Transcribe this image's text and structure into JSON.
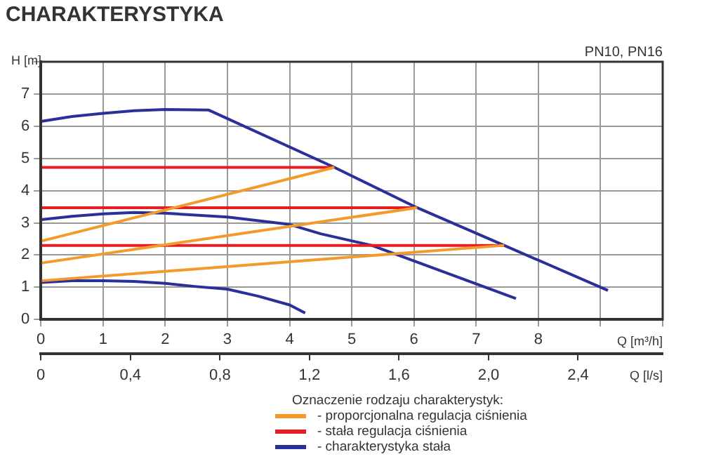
{
  "chart_data": {
    "type": "line",
    "title": "CHARAKTERYSTYKA",
    "subtitle": "PN10, PN16",
    "xlabel": "Q [m³/h]",
    "ylabel": "H [m]",
    "x2label": "Q [l/s]",
    "legend_title": "Oznaczenie rodzaju charakterystyk:",
    "legend": "bottom",
    "grid": true,
    "marker": "none",
    "line_style": "solid",
    "xlim": [
      0,
      10
    ],
    "xticks": [
      0,
      1,
      2,
      3,
      4,
      5,
      6,
      7,
      8,
      {
        "value": 9,
        "label": null
      },
      {
        "value": 10,
        "label": null
      }
    ],
    "ylim": [
      0,
      8
    ],
    "yticks": [
      0,
      1,
      2,
      3,
      4,
      5,
      6,
      7,
      {
        "value": 8,
        "label": null
      }
    ],
    "x2lim": [
      0,
      2.778
    ],
    "x2ticks": [
      0,
      {
        "value": 0.4,
        "label": "0,4"
      },
      {
        "value": 0.8,
        "label": "0,8"
      },
      {
        "value": 1.2,
        "label": "1,2"
      },
      {
        "value": 1.6,
        "label": "1,6"
      },
      {
        "value": 2.0,
        "label": "2,0"
      },
      {
        "value": 2.4,
        "label": "2,4"
      }
    ],
    "series": [
      {
        "name": "- proporcjonalna regulacja ciśnienia",
        "color": "#f39a2b",
        "x": [
          0,
          4.72
        ],
        "values": [
          2.43,
          4.72
        ]
      },
      {
        "color": "#f39a2b",
        "x": [
          0,
          6.05
        ],
        "values": [
          1.75,
          3.47
        ]
      },
      {
        "color": "#f39a2b",
        "x": [
          0,
          7.45
        ],
        "values": [
          1.2,
          2.3
        ]
      },
      {
        "name": "- stała regulacja ciśnienia",
        "color": "#e31e24",
        "x": [
          0,
          4.72
        ],
        "values": [
          4.72,
          4.72
        ]
      },
      {
        "color": "#e31e24",
        "x": [
          0,
          6.05
        ],
        "values": [
          3.47,
          3.47
        ]
      },
      {
        "color": "#e31e24",
        "x": [
          0,
          7.45
        ],
        "values": [
          2.3,
          2.3
        ]
      },
      {
        "name": "- charakterystyka stała",
        "color": "#2b2f9a",
        "x": [
          0,
          0.5,
          1,
          1.5,
          2,
          2.7,
          4.72,
          6.05,
          7.45,
          9.12
        ],
        "values": [
          6.15,
          6.3,
          6.4,
          6.48,
          6.52,
          6.5,
          4.72,
          3.47,
          2.3,
          0.9
        ]
      },
      {
        "color": "#2b2f9a",
        "x": [
          0,
          0.5,
          1,
          1.5,
          2,
          3,
          4,
          4.5,
          5.32,
          6.5,
          7.64
        ],
        "values": [
          3.1,
          3.2,
          3.28,
          3.32,
          3.3,
          3.18,
          2.95,
          2.66,
          2.3,
          1.46,
          0.65
        ]
      },
      {
        "color": "#2b2f9a",
        "x": [
          0,
          0.5,
          1,
          1.5,
          2,
          2.5,
          3,
          3.5,
          4,
          4.25
        ],
        "values": [
          1.15,
          1.2,
          1.2,
          1.18,
          1.12,
          1.02,
          0.94,
          0.72,
          0.45,
          0.2
        ]
      }
    ]
  }
}
